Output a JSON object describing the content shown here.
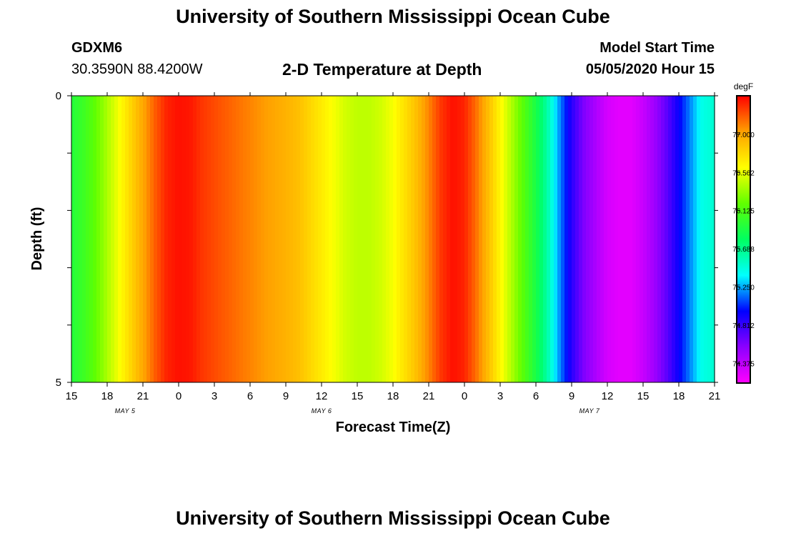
{
  "header": {
    "title": "University of Southern Mississippi Ocean Cube",
    "station_id": "GDXM6",
    "coordinates": "30.3590N 88.4200W",
    "plot_title": "2-D Temperature at Depth",
    "start_label": "Model Start Time",
    "start_value": "05/05/2020 Hour 15",
    "footer_title": "University of Southern Mississippi Ocean Cube"
  },
  "chart_data": {
    "type": "heatmap",
    "xlabel": "Forecast Time(Z)",
    "ylabel": "Depth (ft)",
    "x_ticks": [
      "15",
      "18",
      "21",
      "0",
      "3",
      "6",
      "9",
      "12",
      "15",
      "18",
      "21",
      "0",
      "3",
      "6",
      "9",
      "12",
      "15",
      "18",
      "21"
    ],
    "x_range_hours": [
      0,
      54
    ],
    "date_labels": [
      {
        "text": "MAY 5",
        "at_tick": 1.5
      },
      {
        "text": "MAY 6",
        "at_tick": 7
      },
      {
        "text": "MAY 7",
        "at_tick": 14.5
      }
    ],
    "y_range": [
      0,
      5
    ],
    "y_ticks": [
      "0",
      "5"
    ],
    "colorbar": {
      "unit": "degF",
      "min": 74.15,
      "max": 77.44,
      "ticks": [
        "77.000",
        "76.562",
        "76.125",
        "75.688",
        "75.250",
        "74.812",
        "74.375"
      ],
      "tick_values": [
        77.0,
        76.562,
        76.125,
        75.688,
        75.25,
        74.812,
        74.375
      ],
      "colors": [
        "#ff00ff",
        "#8c00ff",
        "#0000ff",
        "#00ffff",
        "#00ff60",
        "#60ff00",
        "#ffff00",
        "#ffa000",
        "#ff0000"
      ]
    },
    "time_hours": [
      0,
      1,
      2,
      3,
      4,
      5,
      6,
      7,
      8,
      9,
      10,
      11,
      12,
      13,
      14,
      15,
      16,
      17,
      18,
      19,
      20,
      21,
      22,
      23,
      24,
      25,
      26,
      27,
      28,
      29,
      30,
      31,
      32,
      33,
      34,
      35,
      36,
      37,
      38,
      39,
      40,
      41,
      42,
      43,
      44,
      45,
      46,
      47,
      48,
      49,
      50,
      51,
      52,
      53,
      54
    ],
    "temperature_degF": [
      75.95,
      76.05,
      76.2,
      76.4,
      76.6,
      76.8,
      77.0,
      77.2,
      77.35,
      77.4,
      77.38,
      77.3,
      77.25,
      77.2,
      77.15,
      77.1,
      77.05,
      77.0,
      76.95,
      76.9,
      76.8,
      76.7,
      76.6,
      76.5,
      76.45,
      76.45,
      76.5,
      76.6,
      76.75,
      76.9,
      77.1,
      77.3,
      77.4,
      77.35,
      77.15,
      76.9,
      76.65,
      76.4,
      76.15,
      75.9,
      75.6,
      75.2,
      74.85,
      74.6,
      74.45,
      74.3,
      74.25,
      74.25,
      74.35,
      74.5,
      74.7,
      74.95,
      75.2,
      75.45,
      75.5
    ]
  }
}
